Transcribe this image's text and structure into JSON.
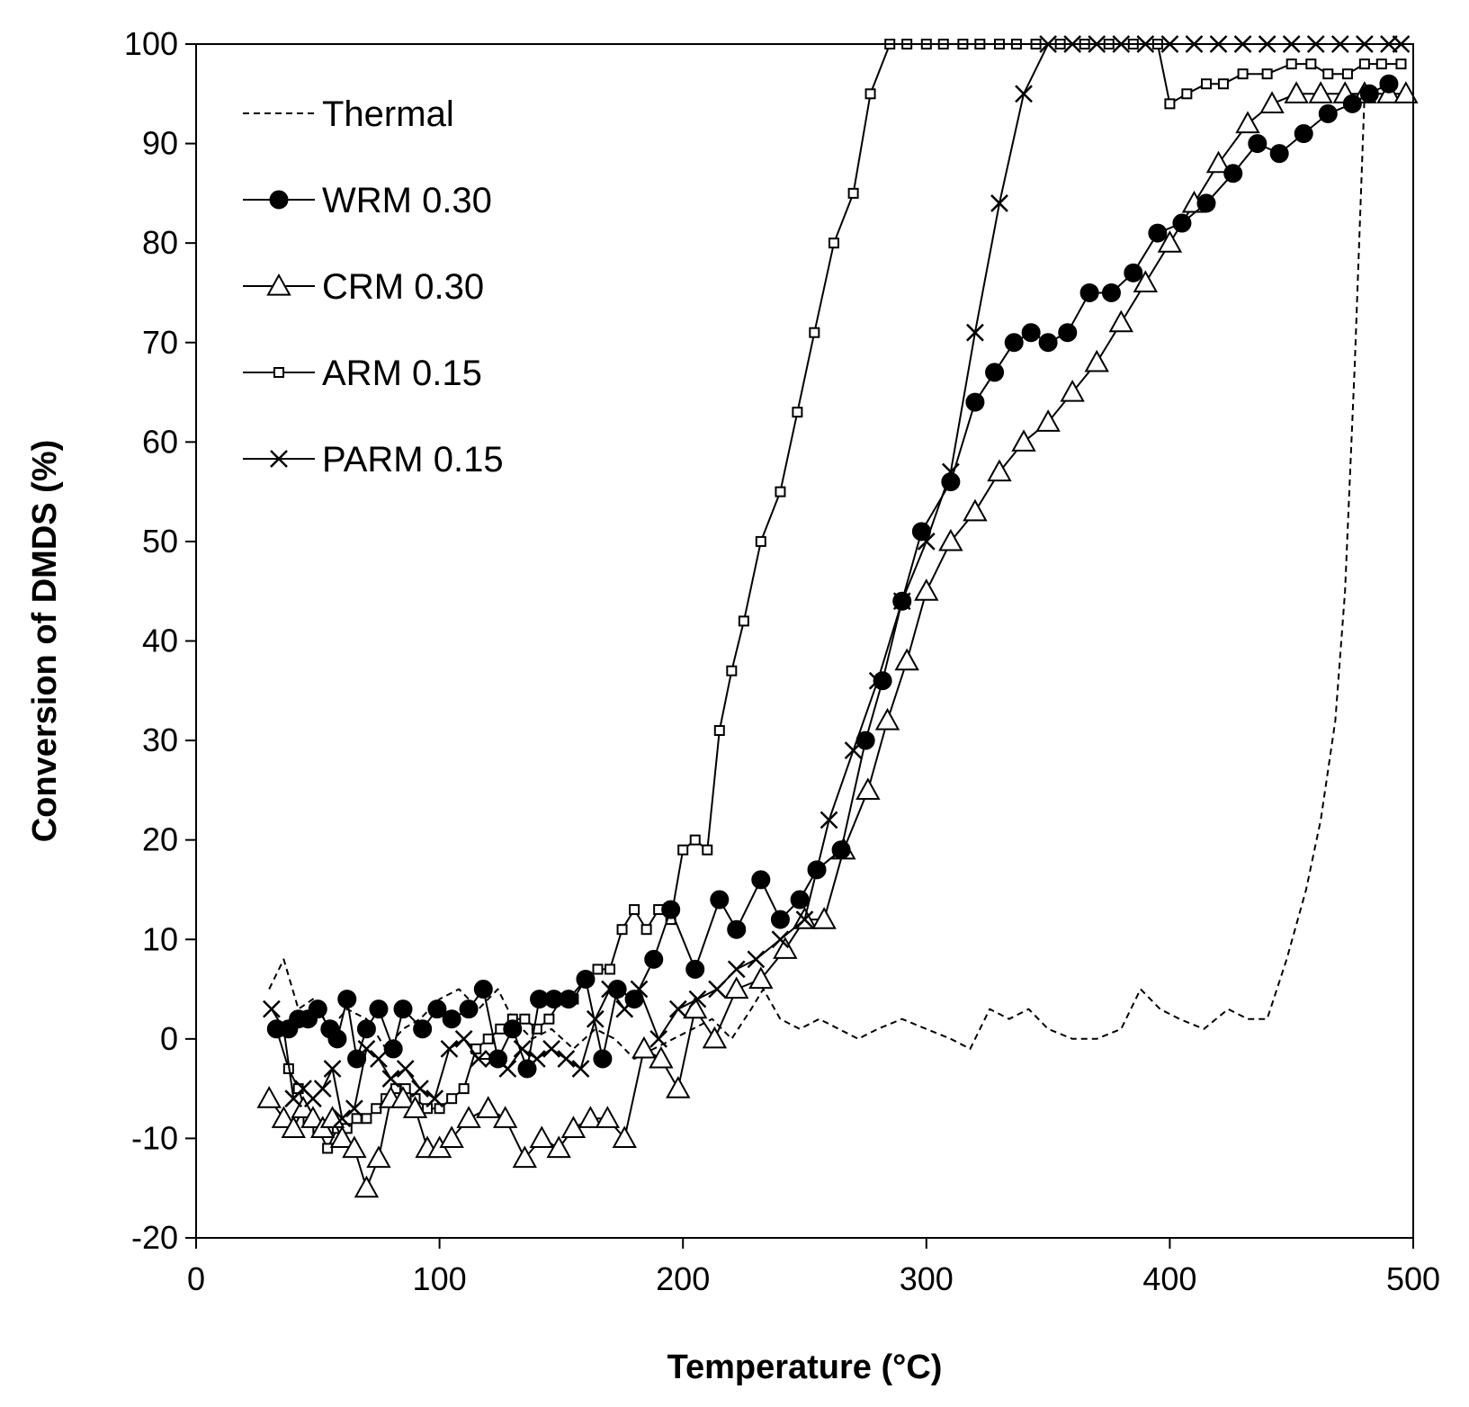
{
  "chart_data": {
    "type": "line",
    "title": "",
    "xlabel": "Temperature (°C)",
    "ylabel": "Conversion of DMDS (%)",
    "xlim": [
      0,
      500
    ],
    "ylim": [
      -20,
      100
    ],
    "x_ticks": [
      "0",
      "100",
      "200",
      "300",
      "400",
      "500"
    ],
    "y_ticks": [
      "-20",
      "-10",
      "0",
      "10",
      "20",
      "30",
      "40",
      "50",
      "60",
      "70",
      "80",
      "90",
      "100"
    ],
    "grid": false,
    "legend_position": "top-left",
    "series": [
      {
        "name": "Thermal",
        "marker": "none",
        "line": "dashed",
        "color": "#000000",
        "x": [
          30,
          36,
          42,
          48,
          55,
          62,
          70,
          78,
          85,
          92,
          100,
          108,
          116,
          124,
          130,
          138,
          146,
          155,
          164,
          172,
          180,
          188,
          196,
          204,
          212,
          220,
          228,
          233,
          240,
          248,
          256,
          264,
          272,
          280,
          290,
          300,
          310,
          318,
          326,
          334,
          342,
          350,
          360,
          370,
          380,
          388,
          396,
          404,
          414,
          424,
          432,
          440,
          448,
          456,
          462,
          468,
          472,
          476,
          480,
          490
        ],
        "y": [
          5,
          8,
          3,
          4,
          1,
          3,
          2,
          -1,
          1,
          2,
          4,
          5,
          3,
          5,
          2,
          0,
          1,
          -1,
          1,
          0,
          -2,
          -1,
          0,
          1,
          2,
          0,
          3,
          5,
          2,
          1,
          2,
          1,
          0,
          1,
          2,
          1,
          0,
          -1,
          3,
          2,
          3,
          1,
          0,
          0,
          1,
          5,
          3,
          2,
          1,
          3,
          2,
          2,
          8,
          15,
          22,
          32,
          45,
          68,
          95,
          95
        ]
      },
      {
        "name": "WRM 0.30",
        "marker": "filled-circle",
        "line": "solid",
        "color": "#000000",
        "x": [
          33,
          38,
          42,
          46,
          50,
          55,
          58,
          62,
          66,
          70,
          75,
          81,
          85,
          93,
          99,
          105,
          112,
          118,
          124,
          130,
          136,
          141,
          147,
          153,
          160,
          167,
          173,
          180,
          188,
          195,
          205,
          215,
          222,
          232,
          240,
          248,
          255,
          265,
          275,
          282,
          290,
          298,
          310,
          320,
          328,
          336,
          343,
          350,
          358,
          367,
          376,
          385,
          395,
          405,
          415,
          426,
          436,
          445,
          455,
          465,
          475,
          482,
          490
        ],
        "y": [
          1,
          1,
          2,
          2,
          3,
          1,
          0,
          4,
          -2,
          1,
          3,
          -1,
          3,
          1,
          3,
          2,
          3,
          5,
          -2,
          1,
          -3,
          4,
          4,
          4,
          6,
          -2,
          5,
          4,
          8,
          13,
          7,
          14,
          11,
          16,
          12,
          14,
          17,
          19,
          30,
          36,
          44,
          51,
          56,
          64,
          67,
          70,
          71,
          70,
          71,
          75,
          75,
          77,
          81,
          82,
          84,
          87,
          90,
          89,
          91,
          93,
          94,
          95,
          96
        ]
      },
      {
        "name": "CRM 0.30",
        "marker": "open-triangle",
        "line": "solid",
        "color": "#000000",
        "x": [
          30,
          36,
          40,
          44,
          48,
          52,
          56,
          60,
          65,
          70,
          75,
          80,
          85,
          90,
          95,
          100,
          105,
          112,
          120,
          127,
          135,
          142,
          149,
          155,
          162,
          169,
          176,
          184,
          191,
          198,
          205,
          213,
          222,
          232,
          242,
          250,
          258,
          266,
          276,
          284,
          292,
          300,
          310,
          320,
          330,
          340,
          350,
          360,
          370,
          380,
          390,
          400,
          410,
          420,
          432,
          442,
          452,
          462,
          472,
          480,
          490,
          497
        ],
        "y": [
          -6,
          -8,
          -9,
          -7,
          -8,
          -9,
          -8,
          -10,
          -11,
          -15,
          -12,
          -6,
          -6,
          -7,
          -11,
          -11,
          -10,
          -8,
          -7,
          -8,
          -12,
          -10,
          -11,
          -9,
          -8,
          -8,
          -10,
          -1,
          -2,
          -5,
          3,
          0,
          5,
          6,
          9,
          12,
          12,
          19,
          25,
          32,
          38,
          45,
          50,
          53,
          57,
          60,
          62,
          65,
          68,
          72,
          76,
          80,
          84,
          88,
          92,
          94,
          95,
          95,
          95,
          95,
          95,
          95
        ]
      },
      {
        "name": "ARM 0.15",
        "marker": "open-square",
        "line": "solid",
        "color": "#000000",
        "x": [
          33,
          38,
          42,
          46,
          50,
          54,
          58,
          62,
          66,
          70,
          74,
          78,
          82,
          86,
          90,
          95,
          100,
          105,
          110,
          115,
          120,
          125,
          130,
          135,
          140,
          145,
          150,
          155,
          160,
          165,
          170,
          175,
          180,
          185,
          190,
          195,
          200,
          205,
          210,
          215,
          220,
          225,
          232,
          240,
          247,
          254,
          262,
          270,
          277,
          285,
          292,
          300,
          307,
          315,
          322,
          330,
          337,
          345,
          355,
          365,
          375,
          385,
          395,
          400,
          407,
          415,
          422,
          430,
          440,
          450,
          458,
          465,
          473,
          480,
          487,
          495
        ],
        "y": [
          1,
          -3,
          -5,
          -8,
          -9,
          -11,
          -9,
          -9,
          -8,
          -8,
          -7,
          -6,
          -5,
          -5,
          -6,
          -7,
          -7,
          -6,
          -5,
          -1,
          0,
          1,
          2,
          2,
          1,
          2,
          4,
          4,
          6,
          7,
          7,
          11,
          13,
          11,
          13,
          12,
          19,
          20,
          19,
          31,
          37,
          42,
          50,
          55,
          63,
          71,
          80,
          85,
          95,
          100,
          100,
          100,
          100,
          100,
          100,
          100,
          100,
          100,
          100,
          100,
          100,
          100,
          100,
          94,
          95,
          96,
          96,
          97,
          97,
          98,
          98,
          97,
          97,
          98,
          98,
          98
        ]
      },
      {
        "name": "PARM 0.15",
        "marker": "cross",
        "line": "solid",
        "color": "#000000",
        "x": [
          31,
          36,
          40,
          44,
          48,
          52,
          56,
          60,
          65,
          70,
          75,
          80,
          86,
          92,
          98,
          104,
          110,
          116,
          122,
          128,
          134,
          140,
          146,
          152,
          158,
          164,
          170,
          176,
          182,
          190,
          198,
          206,
          214,
          222,
          230,
          240,
          250,
          260,
          270,
          280,
          290,
          300,
          310,
          320,
          330,
          340,
          350,
          360,
          370,
          380,
          390,
          400,
          410,
          420,
          430,
          440,
          450,
          460,
          470,
          480,
          490,
          495
        ],
        "y": [
          3,
          1,
          -6,
          -5,
          -6,
          -5,
          -3,
          -8,
          -7,
          -1,
          -2,
          -4,
          -3,
          -5,
          -6,
          -1,
          0,
          -2,
          -2,
          -3,
          -1,
          -2,
          -1,
          -2,
          -3,
          2,
          5,
          3,
          5,
          0,
          3,
          4,
          5,
          7,
          8,
          10,
          12,
          22,
          29,
          36,
          44,
          50,
          57,
          71,
          84,
          95,
          100,
          100,
          100,
          100,
          100,
          100,
          100,
          100,
          100,
          100,
          100,
          100,
          100,
          100,
          100,
          100
        ]
      }
    ]
  }
}
